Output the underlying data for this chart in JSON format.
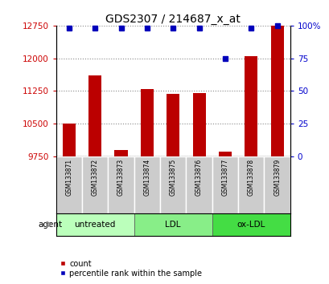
{
  "title": "GDS2307 / 214687_x_at",
  "samples": [
    "GSM133871",
    "GSM133872",
    "GSM133873",
    "GSM133874",
    "GSM133875",
    "GSM133876",
    "GSM133877",
    "GSM133878",
    "GSM133879"
  ],
  "counts": [
    10500,
    11600,
    9900,
    11300,
    11175,
    11200,
    9850,
    12050,
    12750
  ],
  "percentiles_pct": [
    98,
    98,
    98,
    98,
    98,
    98,
    75,
    98,
    100
  ],
  "groups": [
    {
      "label": "untreated",
      "start": 0,
      "end": 3,
      "color": "#bbffbb"
    },
    {
      "label": "LDL",
      "start": 3,
      "end": 6,
      "color": "#88ee88"
    },
    {
      "label": "ox-LDL",
      "start": 6,
      "end": 9,
      "color": "#44dd44"
    }
  ],
  "ylim_left": [
    9750,
    12750
  ],
  "ylim_right": [
    0,
    100
  ],
  "yticks_left": [
    9750,
    10500,
    11250,
    12000,
    12750
  ],
  "yticks_right": [
    0,
    25,
    50,
    75,
    100
  ],
  "bar_color": "#bb0000",
  "dot_color": "#0000bb",
  "left_tick_color": "#cc0000",
  "right_tick_color": "#0000cc",
  "agent_label": "agent",
  "legend_count_label": "count",
  "legend_percentile_label": "percentile rank within the sample",
  "label_row_color": "#cccccc",
  "fig_width": 4.1,
  "fig_height": 3.54,
  "dpi": 100
}
